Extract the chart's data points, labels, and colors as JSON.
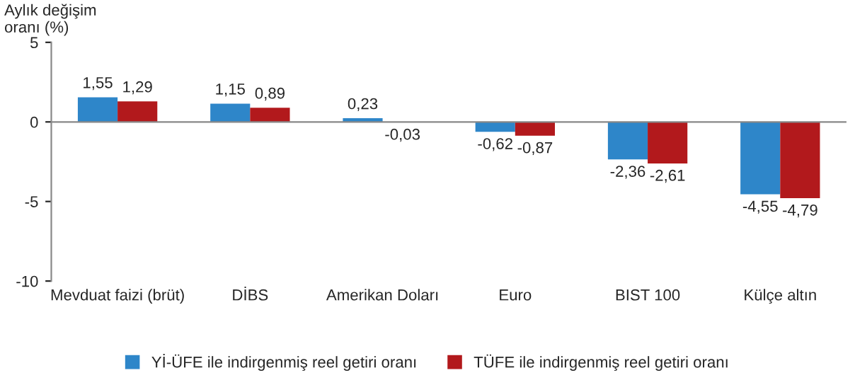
{
  "chart_data": {
    "type": "bar",
    "ylabel": "Aylık değişim\noranı (%)",
    "categories": [
      "Mevduat faizi (brüt)",
      "DİBS",
      "Amerikan Doları",
      "Euro",
      "BIST 100",
      "Külçe altın"
    ],
    "series": [
      {
        "name": "Yİ-ÜFE ile indirgenmiş reel getiri oranı",
        "color": "#2e86c9",
        "values": [
          1.55,
          1.15,
          0.23,
          -0.62,
          -2.36,
          -4.55
        ],
        "value_labels": [
          "1,55",
          "1,15",
          "0,23",
          "-0,62",
          "-2,36",
          "-4,55"
        ]
      },
      {
        "name": "TÜFE ile indirgenmiş reel getiri oranı",
        "color": "#b2191c",
        "values": [
          1.29,
          0.89,
          -0.03,
          -0.87,
          -2.61,
          -4.79
        ],
        "value_labels": [
          "1,29",
          "0,89",
          "-0,03",
          "-0,87",
          "-2,61",
          "-4,79"
        ]
      }
    ],
    "ylim": [
      -10,
      5
    ],
    "yticks": [
      5,
      0,
      -5,
      -10
    ],
    "ref_lines": [
      {
        "axis": "y",
        "value": 0,
        "color": "#888888"
      }
    ],
    "legend": "bottom"
  }
}
